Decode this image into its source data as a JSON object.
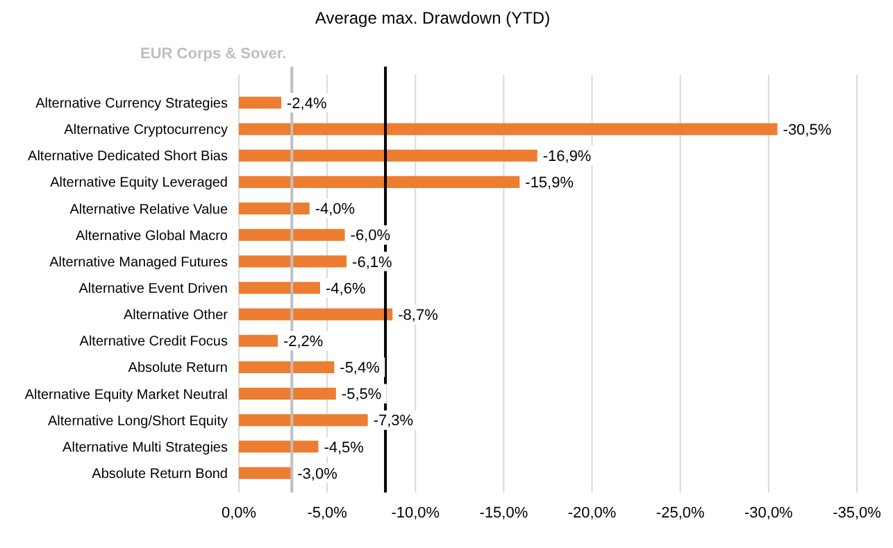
{
  "chart_data": {
    "type": "bar",
    "orientation": "horizontal",
    "title": "Average max. Drawdown (YTD)",
    "categories": [
      "Alternative Currency Strategies",
      "Alternative Cryptocurrency",
      "Alternative Dedicated Short Bias",
      "Alternative Equity Leveraged",
      "Alternative Relative Value",
      "Alternative Global Macro",
      "Alternative Managed Futures",
      "Alternative Event Driven",
      "Alternative Other",
      "Alternative Credit Focus",
      "Absolute Return",
      "Alternative Equity Market Neutral",
      "Alternative Long/Short Equity",
      "Alternative Multi Strategies",
      "Absolute Return Bond"
    ],
    "values": [
      -2.4,
      -30.5,
      -16.9,
      -15.9,
      -4.0,
      -6.0,
      -6.1,
      -4.6,
      -8.7,
      -2.2,
      -5.4,
      -5.5,
      -7.3,
      -4.5,
      -3.0
    ],
    "value_labels": [
      "-2,4%",
      "-30,5%",
      "-16,9%",
      "-15,9%",
      "-4,0%",
      "-6,0%",
      "-6,1%",
      "-4,6%",
      "-8,7%",
      "-2,2%",
      "-5,4%",
      "-5,5%",
      "-7,3%",
      "-4,5%",
      "-3,0%"
    ],
    "color": "#ed7d31",
    "xlim": [
      0,
      -35
    ],
    "xticks": [
      {
        "value": 0,
        "label": "0,0%"
      },
      {
        "value": -5,
        "label": "-5,0%"
      },
      {
        "value": -10,
        "label": "-10,0%"
      },
      {
        "value": -15,
        "label": "-15,0%"
      },
      {
        "value": -20,
        "label": "-20,0%"
      },
      {
        "value": -25,
        "label": "-25,0%"
      },
      {
        "value": -30,
        "label": "-30,0%"
      },
      {
        "value": -35,
        "label": "-35,0%"
      }
    ],
    "grid": "x",
    "ref_lines": [
      {
        "axis": "x",
        "value": -3.0,
        "label": "EUR Corps & Sover.",
        "color": "#bfbfbf"
      },
      {
        "axis": "x",
        "value": -8.3,
        "color": "#000000"
      }
    ]
  }
}
